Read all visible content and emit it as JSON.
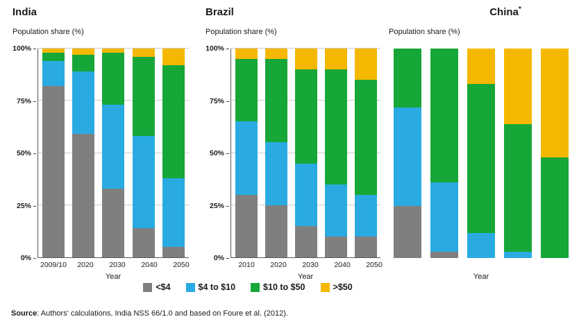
{
  "legend": {
    "items": [
      {
        "label": "<$4",
        "color": "#7f7f7f"
      },
      {
        "label": "$4 to $10",
        "color": "#29abe2"
      },
      {
        "label": "$10 to $50",
        "color": "#17a638"
      },
      {
        "label": ">$50",
        "color": "#f5b800"
      }
    ]
  },
  "source": {
    "label": "Source",
    "text": ": Authors' calculations, India NSS 66/1.0 and based on Foure et al. (2012)."
  },
  "chart_data": [
    {
      "type": "bar",
      "stacked": true,
      "title": "India",
      "title_note": "",
      "subtitle": "Population share (%)",
      "xlabel": "Year",
      "ylabel": "Population share (%)",
      "ylim": [
        0,
        100
      ],
      "yticks": [
        0,
        25,
        50,
        75,
        100
      ],
      "ytick_labels": [
        "0%",
        "25%",
        "50%",
        "75%",
        "100%"
      ],
      "gridlines": [
        25,
        50,
        75,
        100
      ],
      "categories": [
        "2009/10",
        "2020",
        "2030",
        "2040",
        "2050"
      ],
      "series": [
        {
          "name": "<$4",
          "color": "#7f7f7f",
          "values": [
            82,
            59,
            33,
            14,
            5
          ]
        },
        {
          "name": "$4 to $10",
          "color": "#29abe2",
          "values": [
            12,
            30,
            40,
            44,
            33
          ]
        },
        {
          "name": "$10 to $50",
          "color": "#17a638",
          "values": [
            4,
            8,
            25,
            38,
            54
          ]
        },
        {
          "name": ">$50",
          "color": "#f5b800",
          "values": [
            2,
            3,
            2,
            4,
            8
          ]
        }
      ]
    },
    {
      "type": "bar",
      "stacked": true,
      "title": "Brazil",
      "title_note": "",
      "subtitle": "Population share (%)",
      "xlabel": "Year",
      "ylabel": "Population share (%)",
      "ylim": [
        0,
        100
      ],
      "yticks": [
        0,
        25,
        50,
        75,
        100
      ],
      "ytick_labels": [
        "0%",
        "25%",
        "50%",
        "75%",
        "100%"
      ],
      "gridlines": [
        25,
        50,
        75,
        100
      ],
      "categories": [
        "2010",
        "2020",
        "2030",
        "2040",
        "2050"
      ],
      "series": [
        {
          "name": "<$4",
          "color": "#7f7f7f",
          "values": [
            30,
            25,
            15,
            10,
            10
          ]
        },
        {
          "name": "$4 to $10",
          "color": "#29abe2",
          "values": [
            35,
            30,
            30,
            25,
            20
          ]
        },
        {
          "name": "$10 to $50",
          "color": "#17a638",
          "values": [
            30,
            40,
            45,
            55,
            55
          ]
        },
        {
          "name": ">$50",
          "color": "#f5b800",
          "values": [
            5,
            5,
            10,
            10,
            15
          ]
        }
      ]
    },
    {
      "type": "bar",
      "stacked": true,
      "title": "China",
      "title_note": "*",
      "subtitle": "Population share (%)",
      "xlabel": "Year",
      "ylabel": "Population share (%)",
      "ylim": [
        0,
        100
      ],
      "yticks": [],
      "ytick_labels": [],
      "gridlines": [],
      "categories": [],
      "series": [
        {
          "name": "<$4",
          "color": "#7f7f7f",
          "values": [
            25,
            3,
            0,
            0,
            0
          ]
        },
        {
          "name": "$4 to $10",
          "color": "#29abe2",
          "values": [
            47,
            33,
            12,
            3,
            0
          ]
        },
        {
          "name": "$10 to $50",
          "color": "#17a638",
          "values": [
            28,
            64,
            71,
            61,
            48
          ]
        },
        {
          "name": ">$50",
          "color": "#f5b800",
          "values": [
            0,
            0,
            17,
            36,
            52
          ]
        }
      ]
    }
  ]
}
